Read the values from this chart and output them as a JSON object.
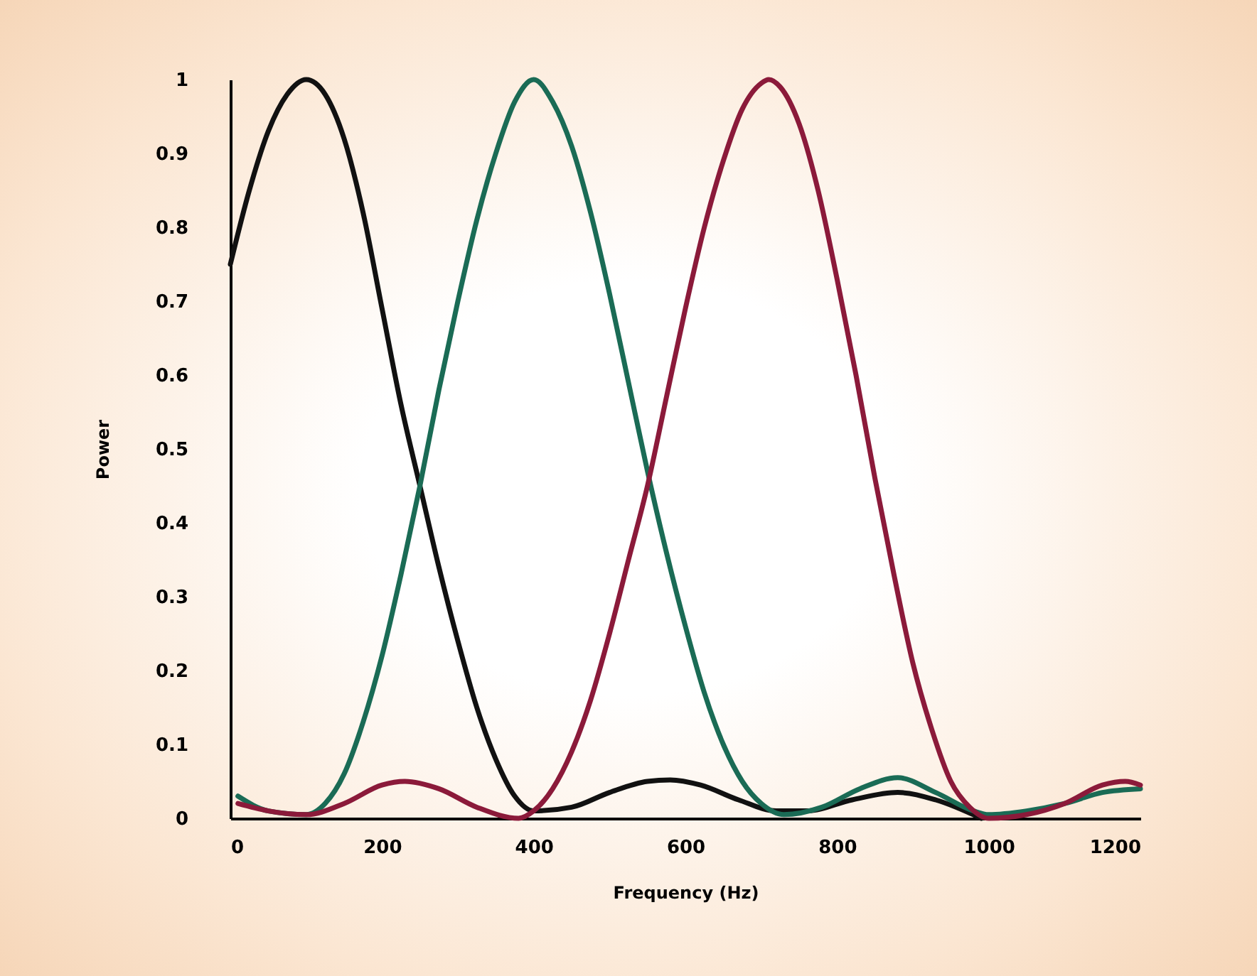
{
  "chart_data": {
    "type": "line",
    "xlabel": "Frequency (Hz)",
    "ylabel": "Power",
    "xlim": [
      0,
      1200
    ],
    "xticks": [
      0,
      200,
      400,
      600,
      800,
      1000,
      1200
    ],
    "ylim": [
      0,
      1
    ],
    "yticks": [
      0,
      0.1,
      0.2,
      0.3,
      0.4,
      0.5,
      0.6,
      0.7,
      0.8,
      0.9,
      1
    ],
    "grid": false,
    "legend": false,
    "marker": "none",
    "line_style": "solid",
    "series": [
      {
        "color": "#111111",
        "x": [
          0,
          25,
          50,
          75,
          100,
          125,
          150,
          175,
          200,
          225,
          250,
          275,
          300,
          325,
          350,
          375,
          400,
          450,
          500,
          550,
          580,
          620,
          670,
          720,
          760,
          820,
          880,
          930,
          990
        ],
        "values": [
          0.75,
          0.85,
          0.93,
          0.98,
          1.0,
          0.98,
          0.92,
          0.82,
          0.69,
          0.56,
          0.45,
          0.34,
          0.24,
          0.15,
          0.08,
          0.03,
          0.01,
          0.015,
          0.035,
          0.05,
          0.052,
          0.045,
          0.025,
          0.01,
          0.01,
          0.025,
          0.035,
          0.025,
          0.0
        ]
      },
      {
        "color": "#1a6b55",
        "x": [
          10,
          50,
          100,
          125,
          150,
          175,
          200,
          225,
          250,
          275,
          300,
          325,
          350,
          375,
          400,
          425,
          450,
          475,
          500,
          525,
          550,
          575,
          600,
          625,
          650,
          675,
          700,
          730,
          780,
          830,
          880,
          930,
          980,
          1000,
          1050,
          1100,
          1150,
          1200
        ],
        "values": [
          0.03,
          0.01,
          0.005,
          0.02,
          0.06,
          0.13,
          0.22,
          0.33,
          0.45,
          0.58,
          0.7,
          0.81,
          0.9,
          0.97,
          1.0,
          0.97,
          0.91,
          0.82,
          0.71,
          0.59,
          0.47,
          0.36,
          0.26,
          0.17,
          0.1,
          0.05,
          0.02,
          0.005,
          0.015,
          0.04,
          0.055,
          0.035,
          0.01,
          0.005,
          0.01,
          0.02,
          0.035,
          0.04
        ]
      },
      {
        "color": "#8b1a3a",
        "x": [
          10,
          50,
          100,
          150,
          200,
          230,
          275,
          325,
          380,
          400,
          425,
          450,
          475,
          500,
          525,
          550,
          575,
          600,
          625,
          650,
          675,
          700,
          710,
          725,
          750,
          775,
          800,
          825,
          850,
          875,
          900,
          925,
          950,
          975,
          1000,
          1050,
          1100,
          1150,
          1180,
          1200
        ],
        "values": [
          0.02,
          0.01,
          0.005,
          0.02,
          0.045,
          0.05,
          0.04,
          0.015,
          0.0,
          0.01,
          0.04,
          0.09,
          0.16,
          0.25,
          0.35,
          0.45,
          0.57,
          0.69,
          0.8,
          0.89,
          0.96,
          0.995,
          1.0,
          0.99,
          0.94,
          0.85,
          0.73,
          0.6,
          0.46,
          0.33,
          0.21,
          0.12,
          0.05,
          0.015,
          0.0,
          0.005,
          0.02,
          0.045,
          0.05,
          0.045
        ]
      }
    ]
  }
}
